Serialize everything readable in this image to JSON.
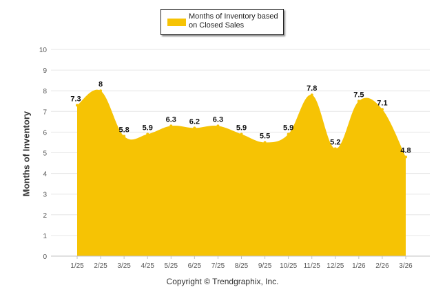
{
  "chart_data": {
    "type": "area",
    "title": "",
    "xlabel": "",
    "ylabel": "Months of Inventory",
    "ylim": [
      0,
      10
    ],
    "yticks": [
      "0",
      "1",
      "2",
      "3",
      "4",
      "5",
      "6",
      "7",
      "8",
      "9",
      "10"
    ],
    "grid": true,
    "legend_position": "top-center",
    "categories": [
      "1/25",
      "2/25",
      "3/25",
      "4/25",
      "5/25",
      "6/25",
      "7/25",
      "8/25",
      "9/25",
      "10/25",
      "11/25",
      "12/25",
      "1/26",
      "2/26",
      "3/26"
    ],
    "series": [
      {
        "name": "Months of Inventory based on Closed Sales",
        "values": [
          7.3,
          8,
          5.8,
          5.9,
          6.3,
          6.2,
          6.3,
          5.9,
          5.5,
          5.9,
          7.8,
          5.2,
          7.5,
          7.1,
          4.8
        ],
        "labels": [
          "7.3",
          "8",
          "5.8",
          "5.9",
          "6.3",
          "6.2",
          "6.3",
          "5.9",
          "5.5",
          "5.9",
          "7.8",
          "5.2",
          "7.5",
          "7.1",
          "4.8"
        ],
        "color": "#F6C304"
      }
    ]
  },
  "legend": {
    "label": "Months of Inventory based on Closed Sales"
  },
  "credit": "Copyright © Trendgraphix, Inc."
}
